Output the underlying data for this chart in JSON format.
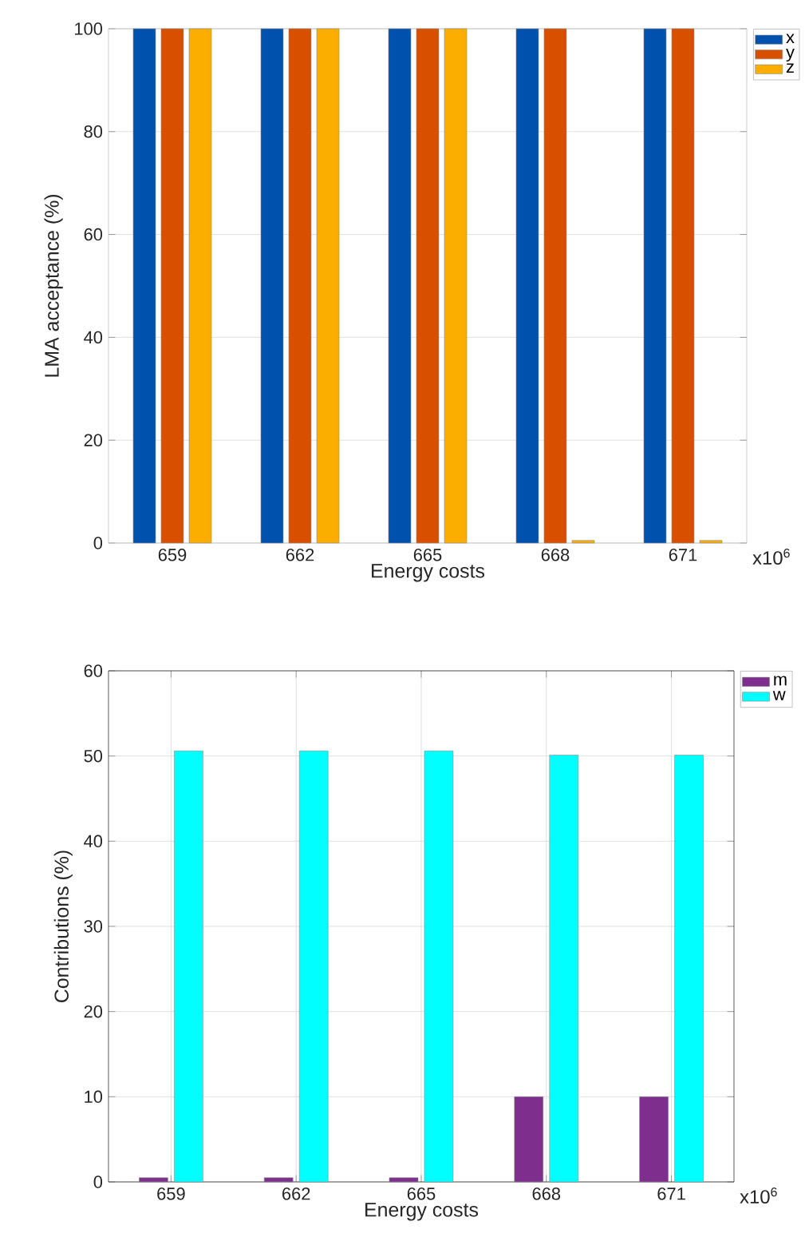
{
  "chart_data": [
    {
      "type": "bar",
      "categories": [
        "659",
        "662",
        "665",
        "668",
        "671"
      ],
      "xlabel": "Energy costs",
      "ylabel": "LMA acceptance (%)",
      "ylim": [
        0,
        100
      ],
      "yticks": [
        0,
        20,
        40,
        60,
        80,
        100
      ],
      "grid": true,
      "legend": "top right",
      "annotations": [
        "x10$^{6}$"
      ],
      "series": [
        {
          "name": "x",
          "color": "#0051ae",
          "values": [
            100,
            100,
            100,
            100,
            100
          ]
        },
        {
          "name": "y",
          "color": "#d94f00",
          "values": [
            100,
            100,
            100,
            100,
            100
          ]
        },
        {
          "name": "z",
          "color": "#fbae00",
          "values": [
            100,
            100,
            100,
            0.5,
            0.5
          ]
        }
      ]
    },
    {
      "type": "bar",
      "categories": [
        "659",
        "662",
        "665",
        "668",
        "671"
      ],
      "xlabel": "Energy costs",
      "ylabel": "Contributions (%)",
      "ylim": [
        0,
        60
      ],
      "yticks": [
        0,
        10,
        20,
        30,
        40,
        50,
        60
      ],
      "grid": true,
      "legend": "top right",
      "annotations": [
        "x10$^{6}$"
      ],
      "series": [
        {
          "name": "m",
          "color": "#7e2f8e",
          "values": [
            0.5,
            0.5,
            0.5,
            10,
            10
          ]
        },
        {
          "name": "w",
          "color": "#00ffff",
          "values": [
            50.6,
            50.6,
            50.6,
            50.1,
            50.1
          ]
        }
      ]
    }
  ]
}
